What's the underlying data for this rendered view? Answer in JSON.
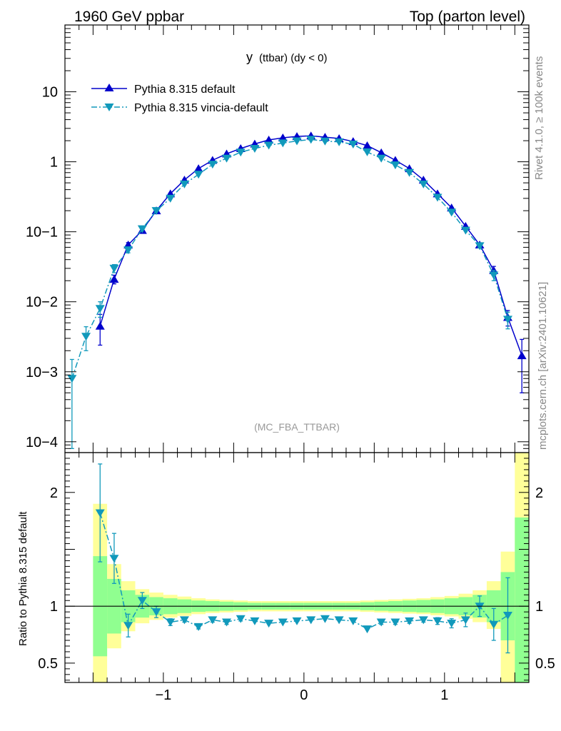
{
  "header": {
    "left_title": "1960 GeV ppbar",
    "right_title": "Top (parton level)"
  },
  "side_labels": {
    "rivet": "Rivet 4.1.0, ≥ 100k events",
    "mcplots": "mcplots.cern.ch [arXiv:2401.10621]"
  },
  "colors": {
    "default": "#0000cc",
    "vincia": "#1199bb",
    "band_inner": "#90ff90",
    "band_outer": "#ffff99"
  },
  "chart_data": [
    {
      "type": "line",
      "panel": "main",
      "title_main": "y",
      "title_rest": "(ttbar) (dy < 0)",
      "watermark": "(MC_FBA_TTBAR)",
      "xlim": [
        -1.7,
        1.6
      ],
      "ylim": [
        7e-05,
        90
      ],
      "yscale": "log",
      "ytick_labels": [
        "10",
        "1",
        "10−1",
        "10−2",
        "10−3",
        "10−4"
      ],
      "legend_position": "top-left",
      "series": [
        {
          "name": "Pythia 8.315 default",
          "marker": "triangle-up",
          "linestyle": "solid",
          "x": [
            -1.45,
            -1.35,
            -1.25,
            -1.15,
            -1.05,
            -0.95,
            -0.85,
            -0.75,
            -0.65,
            -0.55,
            -0.45,
            -0.35,
            -0.25,
            -0.15,
            -0.05,
            0.05,
            0.15,
            0.25,
            0.35,
            0.45,
            0.55,
            0.65,
            0.75,
            0.85,
            0.95,
            1.05,
            1.15,
            1.25,
            1.35,
            1.45,
            1.55
          ],
          "y": [
            0.0045,
            0.021,
            0.065,
            0.105,
            0.2,
            0.35,
            0.55,
            0.8,
            1.05,
            1.3,
            1.55,
            1.8,
            2.05,
            2.2,
            2.3,
            2.35,
            2.25,
            2.15,
            1.95,
            1.7,
            1.35,
            1.05,
            0.8,
            0.55,
            0.35,
            0.22,
            0.12,
            0.065,
            0.028,
            0.006,
            0.0017
          ],
          "yerr_low": [
            0.0021,
            0.003,
            0.005,
            0,
            0,
            0,
            0,
            0,
            0,
            0,
            0,
            0,
            0,
            0,
            0,
            0,
            0,
            0,
            0,
            0,
            0,
            0,
            0,
            0,
            0,
            0,
            0,
            0.004,
            0.004,
            0.0015,
            0.0012
          ],
          "yerr_high": [
            0.0021,
            0.003,
            0.005,
            0,
            0,
            0,
            0,
            0,
            0,
            0,
            0,
            0,
            0,
            0,
            0,
            0,
            0,
            0,
            0,
            0,
            0,
            0,
            0,
            0,
            0,
            0,
            0,
            0.004,
            0.004,
            0.0015,
            0.0012
          ]
        },
        {
          "name": "Pythia 8.315 vincia-default",
          "marker": "triangle-down",
          "linestyle": "dash-dot",
          "x": [
            -1.65,
            -1.55,
            -1.45,
            -1.35,
            -1.25,
            -1.15,
            -1.05,
            -0.95,
            -0.85,
            -0.75,
            -0.65,
            -0.55,
            -0.45,
            -0.35,
            -0.25,
            -0.15,
            -0.05,
            0.05,
            0.15,
            0.25,
            0.35,
            0.45,
            0.55,
            0.65,
            0.75,
            0.85,
            0.95,
            1.05,
            1.15,
            1.25,
            1.35,
            1.45
          ],
          "y": [
            0.0008,
            0.0032,
            0.008,
            0.03,
            0.055,
            0.11,
            0.2,
            0.3,
            0.48,
            0.66,
            0.92,
            1.12,
            1.37,
            1.55,
            1.72,
            1.85,
            1.98,
            2.08,
            1.97,
            1.92,
            1.78,
            1.38,
            1.12,
            0.9,
            0.7,
            0.48,
            0.31,
            0.19,
            0.105,
            0.063,
            0.024,
            0.0056
          ],
          "yerr_low": [
            0.00072,
            0.0012,
            0.002,
            0.004,
            0.005,
            0,
            0,
            0,
            0,
            0,
            0,
            0,
            0,
            0,
            0,
            0,
            0,
            0,
            0,
            0,
            0,
            0,
            0,
            0,
            0,
            0,
            0,
            0,
            0,
            0.004,
            0.004,
            0.0015
          ],
          "yerr_high": [
            0.0007,
            0.0012,
            0.002,
            0.004,
            0.005,
            0,
            0,
            0,
            0,
            0,
            0,
            0,
            0,
            0,
            0,
            0,
            0,
            0,
            0,
            0,
            0,
            0,
            0,
            0,
            0,
            0,
            0,
            0,
            0,
            0.004,
            0.004,
            0.0015
          ]
        }
      ]
    },
    {
      "type": "line",
      "panel": "ratio",
      "ylabel": "Ratio to Pythia 8.315 default",
      "xlim": [
        -1.7,
        1.6
      ],
      "ylim": [
        0.33,
        2.35
      ],
      "ytick_labels": [
        "2",
        "1",
        "0.5"
      ],
      "xtick_labels": [
        "−1",
        "0",
        "1"
      ],
      "reference_line": 1,
      "band_edges": [
        -1.5,
        -1.4,
        -1.3,
        -1.2,
        -1.1,
        -1.0,
        -0.9,
        -0.8,
        -0.7,
        -0.6,
        -0.5,
        -0.4,
        -0.3,
        -0.2,
        -0.1,
        0.0,
        0.1,
        0.2,
        0.3,
        0.4,
        0.5,
        0.6,
        0.7,
        0.8,
        0.9,
        1.0,
        1.1,
        1.2,
        1.3,
        1.4,
        1.5,
        1.6
      ],
      "band_inner_low": [
        0.56,
        0.76,
        0.86,
        0.9,
        0.92,
        0.93,
        0.94,
        0.95,
        0.955,
        0.96,
        0.965,
        0.97,
        0.97,
        0.97,
        0.97,
        0.97,
        0.97,
        0.97,
        0.97,
        0.965,
        0.96,
        0.955,
        0.95,
        0.945,
        0.94,
        0.93,
        0.92,
        0.9,
        0.86,
        0.7,
        0.33
      ],
      "band_inner_high": [
        1.44,
        1.24,
        1.14,
        1.1,
        1.08,
        1.07,
        1.06,
        1.05,
        1.045,
        1.04,
        1.035,
        1.03,
        1.03,
        1.03,
        1.03,
        1.03,
        1.03,
        1.03,
        1.03,
        1.035,
        1.04,
        1.045,
        1.05,
        1.055,
        1.06,
        1.07,
        1.08,
        1.1,
        1.14,
        1.3,
        1.78
      ],
      "band_outer_low": [
        0.33,
        0.63,
        0.78,
        0.85,
        0.88,
        0.9,
        0.915,
        0.93,
        0.94,
        0.945,
        0.95,
        0.955,
        0.955,
        0.955,
        0.955,
        0.955,
        0.955,
        0.955,
        0.955,
        0.95,
        0.945,
        0.94,
        0.935,
        0.93,
        0.92,
        0.91,
        0.89,
        0.86,
        0.8,
        0.33,
        0.33
      ],
      "band_outer_high": [
        1.9,
        1.37,
        1.22,
        1.15,
        1.12,
        1.1,
        1.085,
        1.07,
        1.06,
        1.055,
        1.05,
        1.045,
        1.045,
        1.045,
        1.045,
        1.045,
        1.045,
        1.045,
        1.045,
        1.05,
        1.055,
        1.06,
        1.065,
        1.07,
        1.08,
        1.09,
        1.11,
        1.14,
        1.22,
        1.48,
        2.35
      ],
      "series": [
        {
          "name": "Pythia 8.315 vincia-default",
          "x": [
            -1.45,
            -1.35,
            -1.25,
            -1.15,
            -1.05,
            -0.95,
            -0.85,
            -0.75,
            -0.65,
            -0.55,
            -0.45,
            -0.35,
            -0.25,
            -0.15,
            -0.05,
            0.05,
            0.15,
            0.25,
            0.35,
            0.45,
            0.55,
            0.65,
            0.75,
            0.85,
            0.95,
            1.05,
            1.15,
            1.25,
            1.35,
            1.45
          ],
          "y": [
            1.82,
            1.42,
            0.83,
            1.05,
            0.95,
            0.86,
            0.88,
            0.82,
            0.88,
            0.86,
            0.89,
            0.87,
            0.85,
            0.86,
            0.87,
            0.88,
            0.89,
            0.88,
            0.87,
            0.8,
            0.86,
            0.86,
            0.87,
            0.88,
            0.87,
            0.85,
            0.88,
            1.0,
            0.84,
            0.92
          ],
          "yerr": [
            0.43,
            0.22,
            0.1,
            0.07,
            0.05,
            0.03,
            0.02,
            0.02,
            0.02,
            0.02,
            0.02,
            0.01,
            0.01,
            0.01,
            0.01,
            0.01,
            0.01,
            0.01,
            0.01,
            0.01,
            0.02,
            0.02,
            0.02,
            0.02,
            0.03,
            0.04,
            0.06,
            0.09,
            0.14,
            0.33
          ]
        }
      ]
    }
  ]
}
